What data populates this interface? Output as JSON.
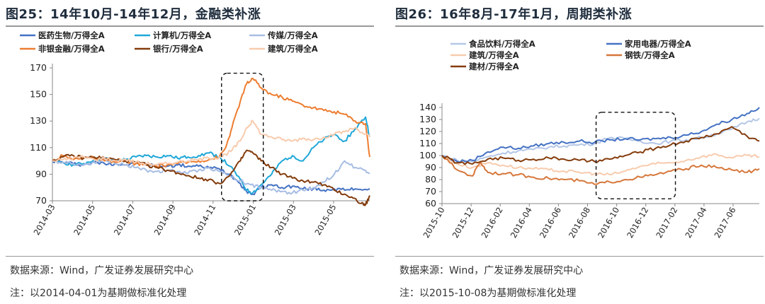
{
  "panels": [
    {
      "title": "图25：14年10月-14年12月，金融类补涨",
      "source": "数据来源：Wind，广发证券发展研究中心",
      "note": "注：以2014-04-01为基期做标准化处理",
      "chart_data": {
        "type": "line",
        "title": "图25：14年10月-14年12月，金融类补涨",
        "ylim": [
          70,
          170
        ],
        "yticks": [
          70,
          90,
          110,
          130,
          150,
          170
        ],
        "xticks": [
          "2014-03",
          "2014-05",
          "2014-07",
          "2014-09",
          "2014-11",
          "2015-01",
          "2015-03",
          "2015-05"
        ],
        "xrange": [
          0,
          15.2
        ],
        "grid": false,
        "legend": "top",
        "highlight": {
          "x0": 8.1,
          "x1": 10.1,
          "y0": 70,
          "y1": 166
        },
        "series": [
          {
            "name": "医药生物/万得全A",
            "color": "#4472C4",
            "x": [
              0,
              0.5,
              1,
              1.5,
              2,
              2.5,
              3,
              3.5,
              4,
              4.5,
              5,
              5.5,
              6,
              6.5,
              7,
              7.5,
              8,
              8.5,
              9,
              9.3,
              9.6,
              10,
              10.5,
              11,
              11.5,
              12,
              12.5,
              13,
              13.5,
              14,
              14.5,
              15.2
            ],
            "y": [
              100,
              99,
              98,
              97,
              99,
              98,
              98,
              97,
              98,
              97,
              97,
              96,
              97,
              96,
              96,
              95,
              94,
              90,
              83,
              77,
              75,
              80,
              82,
              80,
              81,
              79,
              79,
              78,
              79,
              78,
              79,
              79
            ]
          },
          {
            "name": "计算机/万得全A",
            "color": "#1FA7D8",
            "x": [
              0,
              0.5,
              1,
              1.5,
              2,
              2.5,
              3,
              3.5,
              4,
              4.5,
              5,
              5.5,
              6,
              6.5,
              7,
              7.5,
              8,
              8.5,
              9,
              9.3,
              9.6,
              10,
              10.5,
              11,
              11.5,
              12,
              12.5,
              13,
              13.5,
              14,
              14.5,
              15,
              15.2
            ],
            "y": [
              100,
              99,
              97,
              98,
              101,
              102,
              100,
              101,
              103,
              104,
              103,
              104,
              102,
              103,
              104,
              106,
              103,
              96,
              86,
              78,
              76,
              82,
              90,
              100,
              104,
              100,
              110,
              116,
              120,
              115,
              124,
              133,
              118
            ]
          },
          {
            "name": "传媒/万得全A",
            "color": "#A7BDE3",
            "x": [
              0,
              0.5,
              1,
              1.5,
              2,
              2.5,
              3,
              3.5,
              4,
              4.5,
              5,
              5.5,
              6,
              6.5,
              7,
              7.5,
              8,
              8.5,
              9,
              9.5,
              10,
              10.5,
              11,
              11.5,
              12,
              12.5,
              13,
              13.5,
              14,
              14.5,
              15,
              15.2
            ],
            "y": [
              100,
              99,
              98,
              97,
              99,
              101,
              98,
              97,
              95,
              93,
              92,
              93,
              92,
              91,
              93,
              95,
              92,
              89,
              85,
              82,
              80,
              78,
              77,
              76,
              78,
              80,
              84,
              90,
              100,
              95,
              93,
              91
            ]
          },
          {
            "name": "非银金融/万得全A",
            "color": "#ED7D31",
            "x": [
              0,
              0.5,
              1,
              1.5,
              2,
              2.5,
              3,
              3.5,
              4,
              4.5,
              5,
              5.5,
              6,
              6.5,
              7,
              7.5,
              8,
              8.3,
              8.6,
              9,
              9.3,
              9.6,
              10,
              10.5,
              11,
              11.5,
              12,
              12.5,
              13,
              13.5,
              14,
              14.5,
              15,
              15.2
            ],
            "y": [
              100,
              104,
              101,
              103,
              102,
              100,
              99,
              100,
              98,
              97,
              96,
              97,
              98,
              99,
              100,
              101,
              103,
              110,
              125,
              145,
              158,
              162,
              155,
              150,
              148,
              145,
              142,
              140,
              138,
              137,
              135,
              130,
              128,
              103
            ]
          },
          {
            "name": "银行/万得全A",
            "color": "#843C0C",
            "x": [
              0,
              0.5,
              1,
              1.5,
              2,
              2.5,
              3,
              3.5,
              4,
              4.5,
              5,
              5.5,
              6,
              6.5,
              7,
              7.5,
              8,
              8.5,
              9,
              9.3,
              9.6,
              10,
              10.5,
              11,
              11.5,
              12,
              12.5,
              13,
              13.5,
              14,
              14.4,
              14.8,
              15,
              15.2
            ],
            "y": [
              100,
              103,
              104,
              102,
              103,
              102,
              101,
              100,
              99,
              97,
              95,
              93,
              91,
              89,
              87,
              86,
              83,
              89,
              100,
              108,
              106,
              100,
              95,
              90,
              87,
              85,
              84,
              82,
              78,
              75,
              72,
              68,
              67,
              74
            ]
          },
          {
            "name": "建筑/万得全A",
            "color": "#F8CBAD",
            "x": [
              0,
              0.5,
              1,
              1.5,
              2,
              2.5,
              3,
              3.5,
              4,
              4.5,
              5,
              5.5,
              6,
              6.5,
              7,
              7.5,
              8,
              8.3,
              8.6,
              9,
              9.3,
              9.6,
              10,
              10.5,
              11,
              11.5,
              12,
              12.5,
              13,
              13.5,
              14,
              14.5,
              15,
              15.2
            ],
            "y": [
              100,
              101,
              102,
              103,
              101,
              102,
              100,
              101,
              99,
              98,
              97,
              98,
              99,
              100,
              101,
              102,
              103,
              105,
              108,
              115,
              125,
              130,
              120,
              118,
              116,
              115,
              117,
              116,
              118,
              120,
              122,
              125,
              120,
              118
            ]
          }
        ]
      }
    },
    {
      "title": "图26：16年8月-17年1月，周期类补涨",
      "source": "数据来源：Wind，广发证券发展研究中心",
      "note": "注：以2015-10-08为基期做标准化处理",
      "chart_data": {
        "type": "line",
        "title": "图26：16年8月-17年1月，周期类补涨",
        "ylim": [
          60,
          140
        ],
        "yticks": [
          60,
          70,
          80,
          90,
          100,
          110,
          120,
          130,
          140
        ],
        "xticks": [
          "2015-10",
          "2015-12",
          "2016-02",
          "2016-04",
          "2016-06",
          "2016-08",
          "2016-10",
          "2016-12",
          "2017-02",
          "2017-04",
          "2017-06"
        ],
        "xrange": [
          0,
          20.8
        ],
        "grid": false,
        "legend": "top",
        "highlight": {
          "x0": 10.1,
          "x1": 15.3,
          "y0": 64,
          "y1": 136
        },
        "series": [
          {
            "name": "食品饮料/万得全A",
            "color": "#B4C7E7",
            "x": [
              0,
              1,
              2,
              3,
              4,
              5,
              6,
              7,
              8,
              9,
              10,
              11,
              12,
              13,
              14,
              15,
              16,
              17,
              18,
              19,
              20,
              20.8
            ],
            "y": [
              100,
              96,
              95,
              99,
              102,
              104,
              105,
              107,
              108,
              109,
              110,
              115,
              114,
              112,
              110,
              112,
              113,
              115,
              118,
              122,
              128,
              131
            ]
          },
          {
            "name": "家用电器/万得全A",
            "color": "#4472C4",
            "x": [
              0,
              1,
              2,
              3,
              4,
              5,
              6,
              7,
              8,
              9,
              10,
              11,
              12,
              13,
              14,
              15,
              16,
              17,
              18,
              19,
              20,
              20.8
            ],
            "y": [
              100,
              95,
              96,
              103,
              107,
              106,
              108,
              110,
              111,
              112,
              111,
              113,
              114,
              113,
              114,
              115,
              117,
              120,
              126,
              130,
              135,
              140
            ]
          },
          {
            "name": "建筑/万得全A",
            "color": "#F8CBAD",
            "x": [
              0,
              1,
              2,
              3,
              4,
              5,
              6,
              7,
              8,
              9,
              10,
              11,
              12,
              13,
              14,
              15,
              16,
              17,
              18,
              19,
              20,
              20.8
            ],
            "y": [
              100,
              93,
              90,
              94,
              92,
              90,
              89,
              88,
              87,
              86,
              85,
              84,
              87,
              91,
              93,
              94,
              96,
              99,
              101,
              98,
              100,
              99
            ]
          },
          {
            "name": "钢铁/万得全A",
            "color": "#D6773A",
            "x": [
              0,
              1,
              2,
              2.5,
              3,
              4,
              5,
              6,
              7,
              8,
              9,
              10,
              11,
              12,
              13,
              14,
              15,
              16,
              17,
              18,
              19,
              20,
              20.8
            ],
            "y": [
              100,
              88,
              83,
              95,
              86,
              85,
              84,
              82,
              81,
              80,
              79,
              76,
              78,
              80,
              82,
              84,
              87,
              89,
              92,
              90,
              88,
              86,
              89
            ]
          },
          {
            "name": "建材/万得全A",
            "color": "#843C0C",
            "x": [
              0,
              1,
              2,
              3,
              4,
              5,
              6,
              7,
              8,
              9,
              10,
              11,
              12,
              13,
              14,
              15,
              16,
              17,
              18,
              19,
              20,
              20.8
            ],
            "y": [
              100,
              94,
              93,
              97,
              98,
              96,
              97,
              98,
              97,
              96,
              95,
              97,
              100,
              103,
              106,
              109,
              112,
              115,
              118,
              124,
              116,
              112
            ]
          }
        ]
      }
    }
  ]
}
